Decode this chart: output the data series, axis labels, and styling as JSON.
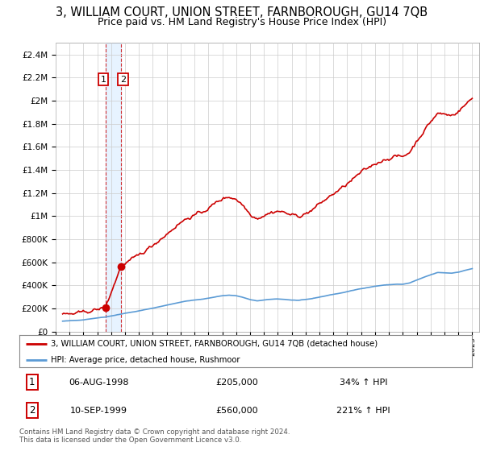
{
  "title": "3, WILLIAM COURT, UNION STREET, FARNBOROUGH, GU14 7QB",
  "subtitle": "Price paid vs. HM Land Registry's House Price Index (HPI)",
  "title_fontsize": 10.5,
  "subtitle_fontsize": 9,
  "hpi_color": "#5b9bd5",
  "property_color": "#cc0000",
  "background_color": "#ffffff",
  "grid_color": "#cccccc",
  "ylim": [
    0,
    2500000
  ],
  "yticks": [
    0,
    200000,
    400000,
    600000,
    800000,
    1000000,
    1200000,
    1400000,
    1600000,
    1800000,
    2000000,
    2200000,
    2400000
  ],
  "ytick_labels": [
    "£0",
    "£200K",
    "£400K",
    "£600K",
    "£800K",
    "£1M",
    "£1.2M",
    "£1.4M",
    "£1.6M",
    "£1.8M",
    "£2M",
    "£2.2M",
    "£2.4M"
  ],
  "legend_property": "3, WILLIAM COURT, UNION STREET, FARNBOROUGH, GU14 7QB (detached house)",
  "legend_hpi": "HPI: Average price, detached house, Rushmoor",
  "transaction1_date": "06-AUG-1998",
  "transaction1_price": "£205,000",
  "transaction1_hpi": "34% ↑ HPI",
  "transaction2_date": "10-SEP-1999",
  "transaction2_price": "£560,000",
  "transaction2_hpi": "221% ↑ HPI",
  "copyright": "Contains HM Land Registry data © Crown copyright and database right 2024.\nThis data is licensed under the Open Government Licence v3.0.",
  "property_marker1_x": 1998.58,
  "property_marker1_y": 205000,
  "property_marker2_x": 1999.69,
  "property_marker2_y": 560000,
  "transaction1_dashed_x": 1998.58,
  "transaction2_dashed_x": 1999.69,
  "xlim_left": 1995.3,
  "xlim_right": 2025.5
}
